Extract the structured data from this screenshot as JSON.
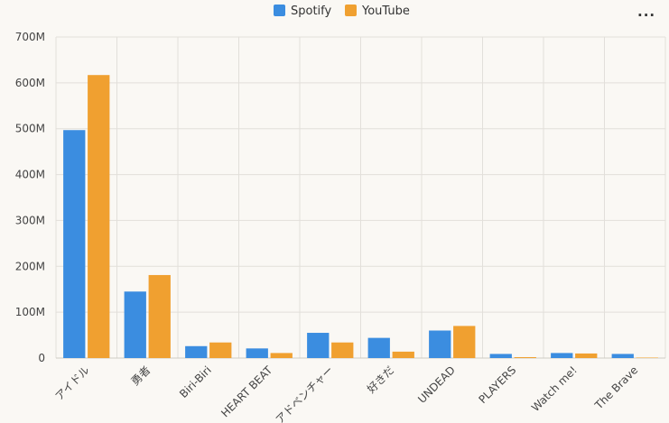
{
  "menu": {
    "icon": "more-horizontal-icon",
    "glyph": "···"
  },
  "chart_data": {
    "type": "bar",
    "categories": [
      "アイドル",
      "勇者",
      "Biri-Biri",
      "HEART BEAT",
      "アドベンチャー",
      "好きだ",
      "UNDEAD",
      "PLAYERS",
      "Watch me!",
      "The Brave"
    ],
    "series": [
      {
        "name": "Spotify",
        "color": "#3b8de0",
        "values": [
          497,
          145,
          26,
          21,
          55,
          44,
          60,
          9,
          11,
          9
        ]
      },
      {
        "name": "YouTube",
        "color": "#f0a030",
        "values": [
          617,
          181,
          34,
          11,
          34,
          14,
          70,
          2,
          10,
          1
        ]
      }
    ],
    "yticks": [
      "0",
      "100M",
      "200M",
      "300M",
      "400M",
      "500M",
      "600M",
      "700M"
    ],
    "ylim": [
      0,
      700
    ],
    "grid": true,
    "legend_position": "top-center"
  }
}
